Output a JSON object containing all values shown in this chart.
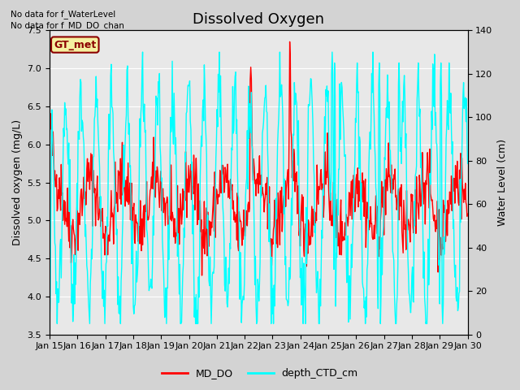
{
  "title": "Dissolved Oxygen",
  "ylabel_left": "Dissolved oxygen (mg/L)",
  "ylabel_right": "Water Level (cm)",
  "ylim_left": [
    3.5,
    7.5
  ],
  "ylim_right": [
    0,
    140
  ],
  "yticks_left": [
    3.5,
    4.0,
    4.5,
    5.0,
    5.5,
    6.0,
    6.5,
    7.0,
    7.5
  ],
  "yticks_right": [
    0,
    20,
    40,
    60,
    80,
    100,
    120,
    140
  ],
  "xtick_labels": [
    "Jan 15",
    "Jan 16",
    "Jan 17",
    "Jan 18",
    "Jan 19",
    "Jan 20",
    "Jan 21",
    "Jan 22",
    "Jan 23",
    "Jan 24",
    "Jan 25",
    "Jan 26",
    "Jan 27",
    "Jan 28",
    "Jan 29",
    "Jan 30"
  ],
  "no_data_text1": "No data for f_WaterLevel",
  "no_data_text2": "No data for f_MD_DO_chan",
  "gt_met_label": "GT_met",
  "legend_labels": [
    "MD_DO",
    "depth_CTD_cm"
  ],
  "line_colors": [
    "red",
    "cyan"
  ],
  "background_color": "#d3d3d3",
  "plot_bg_color": "#e8e8e8",
  "title_fontsize": 13,
  "axis_fontsize": 9,
  "tick_fontsize": 8
}
